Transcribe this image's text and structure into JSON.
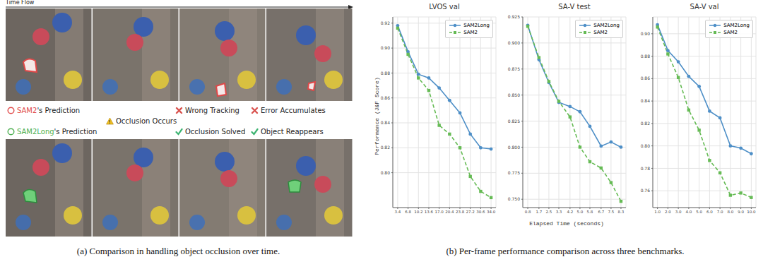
{
  "panel_a": {
    "time_axis": "Time Flow",
    "legend_rows": [
      [
        {
          "text": "SAM2's Prediction",
          "highlight": "SAM2"
        },
        {
          "text": "Wrong Tracking"
        },
        {
          "text": "Error Accumulates"
        }
      ],
      [
        {
          "text": "Occlusion Occurs"
        }
      ],
      [
        {
          "text": "SAM2Long's Prediction",
          "highlight": "SAM2Long"
        },
        {
          "text": "Occlusion Solved"
        },
        {
          "text": "Object Reappears"
        }
      ]
    ],
    "caption": "(a) Comparison in handling object occlusion over time."
  },
  "panel_b_caption": "(b) Per-frame performance comparison across three benchmarks.",
  "chart_data": [
    {
      "type": "line",
      "title": "LVOS val",
      "y_label": "Performance (J&F Score)",
      "x": [
        3.4,
        6.8,
        10.2,
        13.6,
        17.0,
        20.4,
        23.8,
        27.2,
        30.6,
        34.0
      ],
      "xlim": [
        1.8,
        35.6
      ],
      "xticks": [
        3.4,
        6.8,
        10.2,
        13.6,
        {
          "value": 17,
          "label": "17.0"
        },
        20.4,
        23.8,
        27.2,
        30.6,
        {
          "value": 34,
          "label": "34.0"
        }
      ],
      "ylim": [
        0.772,
        0.925
      ],
      "yticks": [
        {
          "value": 0.8,
          "label": "0.80"
        },
        0.82,
        0.84,
        0.86,
        0.88,
        {
          "value": 0.9,
          "label": "0.90"
        },
        0.92
      ],
      "grid": true,
      "legend": "upper right",
      "series": [
        {
          "name": "SAM2Long",
          "color": "#4e8fc7",
          "marker": "circle",
          "line_style": "solid",
          "values": [
            0.918,
            0.897,
            0.879,
            0.876,
            0.868,
            0.858,
            0.848,
            0.831,
            0.82,
            0.819
          ]
        },
        {
          "name": "SAM2",
          "color": "#66bb55",
          "marker": "square",
          "line_style": "dashed",
          "values": [
            0.916,
            0.895,
            0.876,
            0.866,
            0.838,
            0.831,
            0.82,
            0.797,
            0.785,
            0.78
          ]
        }
      ]
    },
    {
      "type": "line",
      "title": "SA-V test",
      "x_label": "Elapsed Time (seconds)",
      "x": [
        0.8,
        1.7,
        2.5,
        3.3,
        4.2,
        5.0,
        5.8,
        6.7,
        7.5,
        8.3
      ],
      "xlim": [
        0.4,
        8.7
      ],
      "xticks": [
        0.8,
        1.7,
        2.5,
        3.3,
        4.2,
        {
          "value": 5,
          "label": "5.0"
        },
        5.8,
        6.7,
        7.5,
        8.3
      ],
      "ylim": [
        0.742,
        0.925
      ],
      "yticks": [
        {
          "value": 0.75,
          "label": "0.750"
        },
        0.775,
        {
          "value": 0.8,
          "label": "0.800"
        },
        0.825,
        {
          "value": 0.85,
          "label": "0.850"
        },
        0.875,
        {
          "value": 0.9,
          "label": "0.900"
        },
        0.925
      ],
      "grid": true,
      "legend": "upper right",
      "series": [
        {
          "name": "SAM2Long",
          "color": "#4e8fc7",
          "marker": "circle",
          "line_style": "solid",
          "values": [
            0.917,
            0.884,
            0.862,
            0.843,
            0.839,
            0.834,
            0.82,
            0.801,
            0.805,
            0.8
          ]
        },
        {
          "name": "SAM2",
          "color": "#66bb55",
          "marker": "square",
          "line_style": "dashed",
          "values": [
            0.916,
            0.886,
            0.863,
            0.844,
            0.829,
            0.8,
            0.786,
            0.78,
            0.766,
            0.748
          ]
        }
      ]
    },
    {
      "type": "line",
      "title": "SA-V val",
      "x": [
        1.0,
        2.0,
        3.0,
        4.0,
        5.0,
        6.0,
        7.0,
        8.0,
        9.0,
        10.0
      ],
      "xlim": [
        0.55,
        10.45
      ],
      "xticks": [
        {
          "value": 1,
          "label": "1.0"
        },
        {
          "value": 2,
          "label": "2.0"
        },
        {
          "value": 3,
          "label": "3.0"
        },
        {
          "value": 4,
          "label": "4.0"
        },
        {
          "value": 5,
          "label": "5.0"
        },
        {
          "value": 6,
          "label": "6.0"
        },
        {
          "value": 7,
          "label": "7.0"
        },
        {
          "value": 8,
          "label": "8.0"
        },
        {
          "value": 9,
          "label": "9.0"
        },
        {
          "value": 10,
          "label": "10.0"
        }
      ],
      "ylim": [
        0.745,
        0.915
      ],
      "yticks": [
        0.76,
        0.78,
        {
          "value": 0.8,
          "label": "0.80"
        },
        0.82,
        0.84,
        0.86,
        0.88,
        {
          "value": 0.9,
          "label": "0.90"
        }
      ],
      "grid": true,
      "legend": "upper right",
      "series": [
        {
          "name": "SAM2Long",
          "color": "#4e8fc7",
          "marker": "circle",
          "line_style": "solid",
          "values": [
            0.908,
            0.885,
            0.875,
            0.862,
            0.853,
            0.831,
            0.825,
            0.8,
            0.798,
            0.793
          ]
        },
        {
          "name": "SAM2",
          "color": "#66bb55",
          "marker": "square",
          "line_style": "dashed",
          "values": [
            0.906,
            0.882,
            0.861,
            0.832,
            0.814,
            0.787,
            0.776,
            0.756,
            0.758,
            0.754
          ]
        }
      ]
    }
  ]
}
